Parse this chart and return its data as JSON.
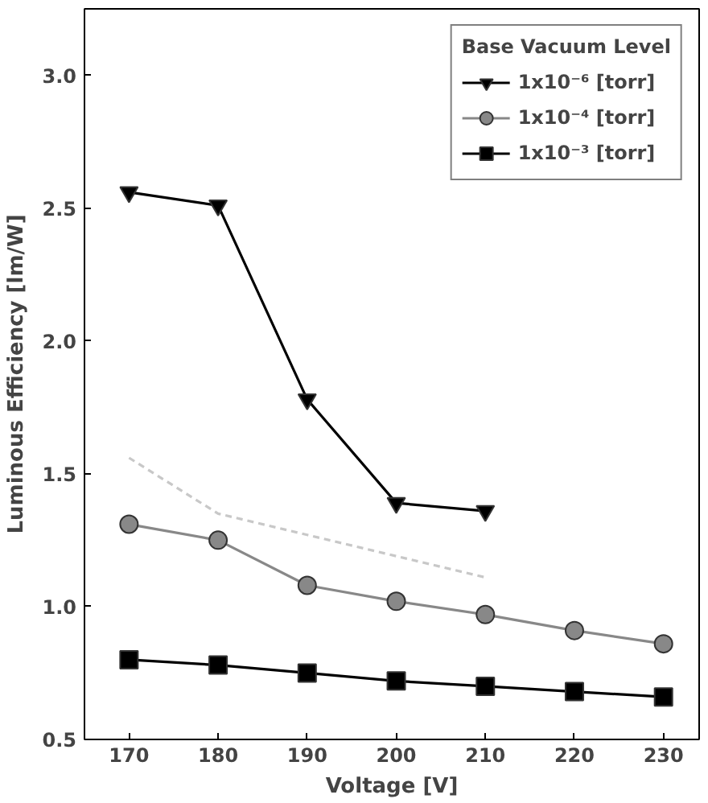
{
  "chart_data": {
    "type": "line",
    "xlabel": "Voltage [V]",
    "ylabel": "Luminous Efficiency [lm/W]",
    "legend_title": "Base Vacuum Level",
    "x": [
      170,
      180,
      190,
      200,
      210,
      220,
      230
    ],
    "xlim": [
      165,
      234
    ],
    "xticks": [
      170,
      180,
      190,
      200,
      210,
      220,
      230
    ],
    "ylim": [
      0.5,
      3.25
    ],
    "yticks": [
      0.5,
      {
        "value": 1,
        "label": "1.0"
      },
      1.5,
      {
        "value": 2,
        "label": "2.0"
      },
      2.5,
      {
        "value": 3,
        "label": "3.0"
      }
    ],
    "grid": false,
    "legend": "top right",
    "series": [
      {
        "name": "1x10⁻⁶ [torr]",
        "color": "#000000",
        "marker": "triangle",
        "line_style": "solid",
        "values": [
          2.56,
          2.51,
          1.78,
          1.39,
          1.36,
          null,
          null
        ]
      },
      {
        "color": "#c8c8c8",
        "marker": "none",
        "line_style": "dashed",
        "values": [
          1.56,
          1.35,
          1.27,
          1.19,
          1.11,
          null,
          null
        ]
      },
      {
        "name": "1x10⁻⁴ [torr]",
        "color": "#888888",
        "marker": "circle",
        "line_style": "solid",
        "values": [
          1.31,
          1.25,
          1.08,
          1.02,
          0.97,
          0.91,
          0.86
        ]
      },
      {
        "name": "1x10⁻³ [torr]",
        "color": "#000000",
        "marker": "square",
        "line_style": "solid",
        "values": [
          0.8,
          0.78,
          0.75,
          0.72,
          0.7,
          0.68,
          0.66
        ]
      }
    ]
  }
}
